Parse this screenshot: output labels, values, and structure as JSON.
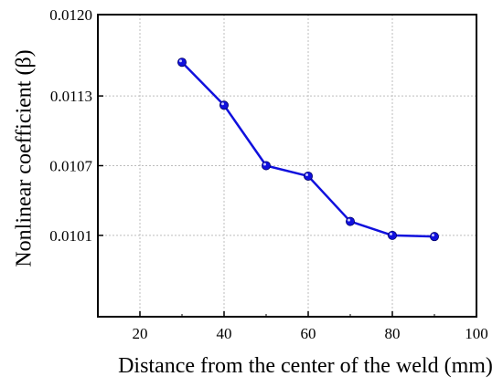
{
  "chart_data": {
    "type": "line",
    "title": "",
    "xlabel": "Distance from the center of the weld (mm)",
    "ylabel": "Nonlinear coefficient (β)",
    "xlim": [
      10,
      100
    ],
    "ylim": [
      0.0094,
      0.012
    ],
    "xticks": [
      20,
      40,
      60,
      80,
      100
    ],
    "yticks": [
      0.0101,
      0.0107,
      0.0113,
      0.012
    ],
    "ytick_labels": [
      "0.0101",
      "0.0107",
      "0.0113",
      "0.0120"
    ],
    "grid": true,
    "series": [
      {
        "x": [
          30,
          40,
          50,
          60,
          70,
          80,
          90
        ],
        "y": [
          0.01159,
          0.01122,
          0.0107,
          0.01061,
          0.01022,
          0.0101,
          0.01009
        ],
        "color": "#1010dd"
      }
    ]
  }
}
